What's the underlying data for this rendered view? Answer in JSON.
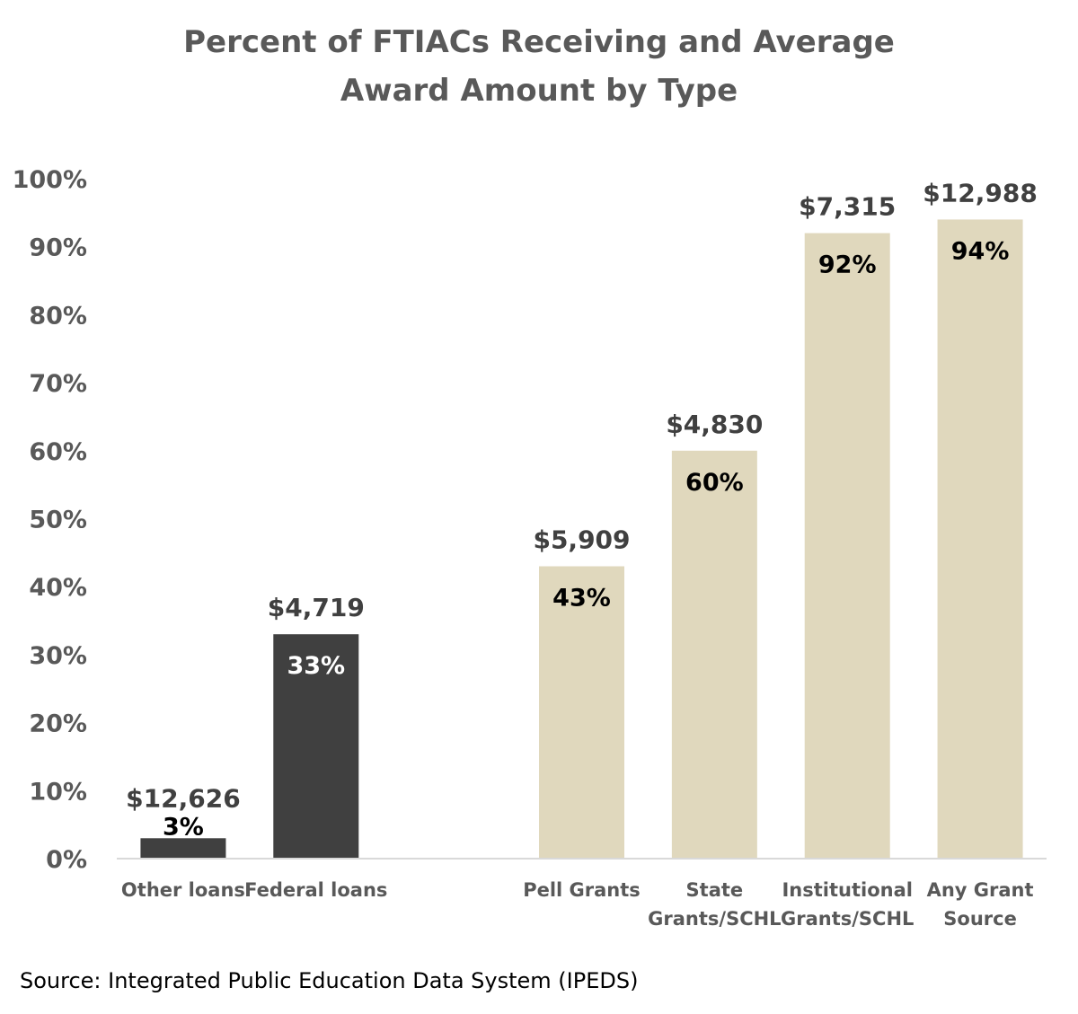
{
  "chart_data": {
    "type": "bar",
    "title": [
      "Percent of FTIACs Receiving and Average",
      "Award Amount by Type"
    ],
    "xlabel": "",
    "ylabel": "",
    "ylim": [
      0,
      100
    ],
    "yticks": [
      "0%",
      "10%",
      "20%",
      "30%",
      "40%",
      "50%",
      "60%",
      "70%",
      "80%",
      "90%",
      "100%"
    ],
    "grid": false,
    "categories": [
      {
        "label": [
          "Other loans"
        ],
        "value": 3,
        "value_label": "3%",
        "amount": "$12,626",
        "color": "#404040",
        "label_color": "#000000",
        "label_outside": true
      },
      {
        "label": [
          "Federal loans"
        ],
        "value": 33,
        "value_label": "33%",
        "amount": "$4,719",
        "color": "#404040",
        "label_color": "#ffffff",
        "label_outside": false
      },
      {
        "label": [
          ""
        ],
        "value": null,
        "value_label": "",
        "amount": "",
        "color": "#e0d8bd",
        "label_color": "#000000",
        "label_outside": false
      },
      {
        "label": [
          "Pell Grants"
        ],
        "value": 43,
        "value_label": "43%",
        "amount": "$5,909",
        "color": "#e0d8bd",
        "label_color": "#000000",
        "label_outside": false
      },
      {
        "label": [
          "State",
          "Grants/SCHL"
        ],
        "value": 60,
        "value_label": "60%",
        "amount": "$4,830",
        "color": "#e0d8bd",
        "label_color": "#000000",
        "label_outside": false
      },
      {
        "label": [
          "Institutional",
          "Grants/SCHL"
        ],
        "value": 92,
        "value_label": "92%",
        "amount": "$7,315",
        "color": "#e0d8bd",
        "label_color": "#000000",
        "label_outside": false
      },
      {
        "label": [
          "Any Grant",
          "Source"
        ],
        "value": 94,
        "value_label": "94%",
        "amount": "$12,988",
        "color": "#e0d8bd",
        "label_color": "#000000",
        "label_outside": false
      }
    ],
    "source": "Source: Integrated Public Education Data System (IPEDS)"
  }
}
